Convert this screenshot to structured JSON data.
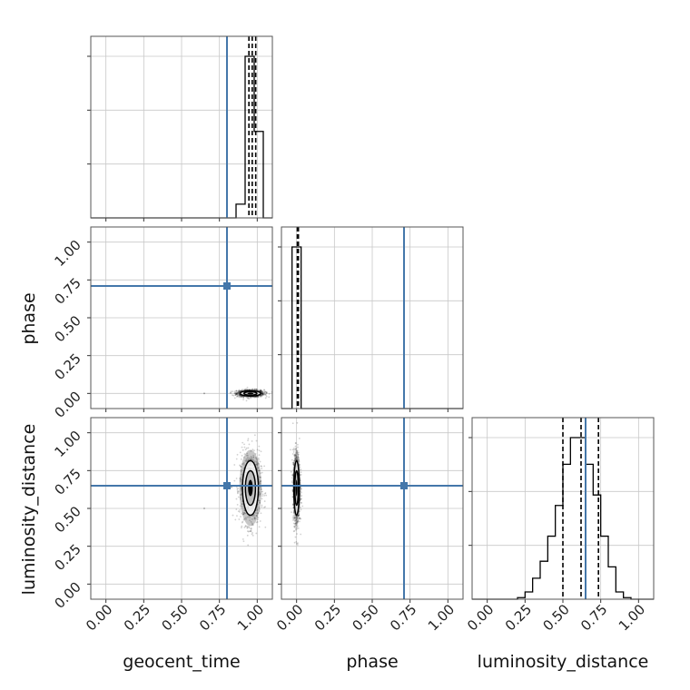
{
  "chart_data": {
    "type": "corner",
    "parameters": [
      "geocent_time",
      "phase",
      "luminosity_distance"
    ],
    "truth_color": "#4477aa",
    "truths": {
      "geocent_time": 0.8,
      "phase": 0.71,
      "luminosity_distance": 0.65
    },
    "range": [
      -0.1,
      1.1
    ],
    "ticks": [
      0,
      0.25,
      0.5,
      0.75,
      1.0
    ],
    "tick_labels": [
      "0.00",
      "0.25",
      "0.50",
      "0.75",
      "1.00"
    ],
    "grid": true,
    "panels": [
      {
        "id": "hist-geocent_time",
        "type": "histogram",
        "parameter": "geocent_time",
        "bins": [
          {
            "x0": 0.86,
            "x1": 0.92,
            "height": 0.085
          },
          {
            "x0": 0.92,
            "x1": 0.98,
            "height": 1.0
          },
          {
            "x0": 0.98,
            "x1": 1.04,
            "height": 0.535
          }
        ],
        "quantiles": [
          0.945,
          0.967,
          0.99
        ]
      },
      {
        "id": "hist-phase",
        "type": "histogram",
        "parameter": "phase",
        "bins": [
          {
            "x0": -0.03,
            "x1": 0.03,
            "height": 1.0
          }
        ],
        "quantiles": [
          0.005,
          0.008,
          0.012
        ]
      },
      {
        "id": "hist-luminosity_distance",
        "type": "histogram",
        "parameter": "luminosity_distance",
        "bins": [
          {
            "x0": 0.2,
            "x1": 0.25,
            "height": 0.01
          },
          {
            "x0": 0.25,
            "x1": 0.3,
            "height": 0.045
          },
          {
            "x0": 0.3,
            "x1": 0.35,
            "height": 0.13
          },
          {
            "x0": 0.35,
            "x1": 0.4,
            "height": 0.235
          },
          {
            "x0": 0.4,
            "x1": 0.45,
            "height": 0.39
          },
          {
            "x0": 0.45,
            "x1": 0.5,
            "height": 0.58
          },
          {
            "x0": 0.5,
            "x1": 0.55,
            "height": 0.835
          },
          {
            "x0": 0.55,
            "x1": 0.6,
            "height": 1.0
          },
          {
            "x0": 0.6,
            "x1": 0.65,
            "height": 1.0
          },
          {
            "x0": 0.65,
            "x1": 0.7,
            "height": 0.835
          },
          {
            "x0": 0.7,
            "x1": 0.75,
            "height": 0.645
          },
          {
            "x0": 0.75,
            "x1": 0.8,
            "height": 0.39
          },
          {
            "x0": 0.8,
            "x1": 0.85,
            "height": 0.2
          },
          {
            "x0": 0.85,
            "x1": 0.9,
            "height": 0.045
          },
          {
            "x0": 0.9,
            "x1": 0.95,
            "height": 0.01
          }
        ],
        "quantiles": [
          0.5,
          0.62,
          0.735
        ]
      },
      {
        "id": "scatter-geocent_time-vs-phase",
        "type": "density2d",
        "x": "geocent_time",
        "y": "phase",
        "center": [
          0.955,
          0.0
        ],
        "spread": [
          0.045,
          0.012
        ],
        "outliers": [
          [
            0.65,
            0.0
          ],
          [
            0.8,
            0.0
          ]
        ]
      },
      {
        "id": "scatter-geocent_time-vs-luminosity_distance",
        "type": "density2d",
        "x": "geocent_time",
        "y": "luminosity_distance",
        "center": [
          0.955,
          0.635
        ],
        "spread": [
          0.035,
          0.12
        ],
        "outliers": [
          [
            0.65,
            0.5
          ],
          [
            0.83,
            0.64
          ]
        ]
      },
      {
        "id": "scatter-phase-vs-luminosity_distance",
        "type": "density2d",
        "x": "phase",
        "y": "luminosity_distance",
        "center": [
          0.0,
          0.635
        ],
        "spread": [
          0.012,
          0.12
        ],
        "outliers": []
      }
    ]
  }
}
